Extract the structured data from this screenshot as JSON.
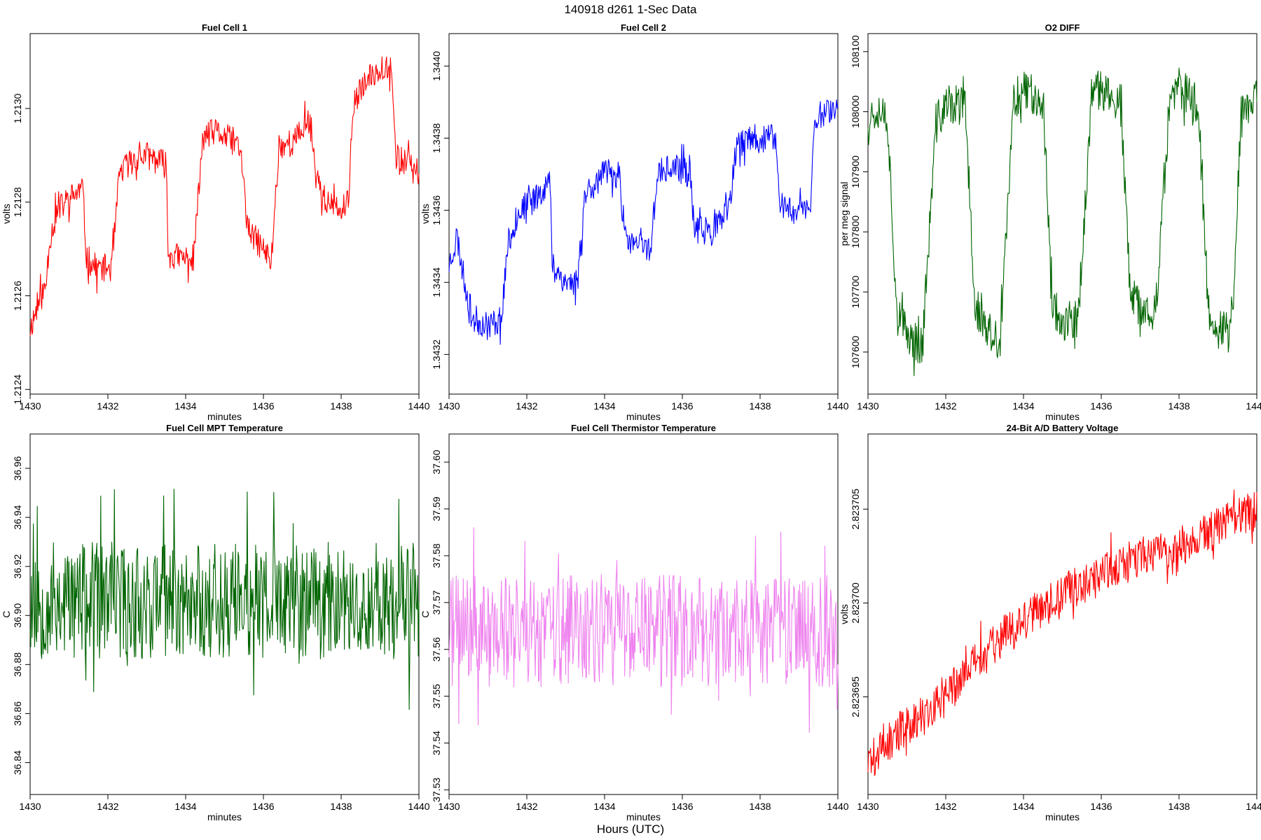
{
  "figure": {
    "title": "140918   d261   1-Sec Data",
    "outer_xlabel": "Hours (UTC)"
  },
  "colors": {
    "red": "#ff0000",
    "blue": "#0000ff",
    "green": "#006400",
    "violet": "#ee82ee"
  },
  "chart_data": [
    {
      "type": "line",
      "title": "Fuel Cell 1",
      "xlabel": "minutes",
      "ylabel": "volts",
      "color": "#ff0000",
      "xlim": [
        1430,
        1440
      ],
      "ylim": [
        1.21239,
        1.21316
      ],
      "xticks": [
        1430,
        1432,
        1434,
        1436,
        1438,
        1440
      ],
      "xtick_labels": [
        "1430",
        "1432",
        "1434",
        "1436",
        "1438",
        "1440"
      ],
      "yticks": [
        1.2124,
        1.2126,
        1.2128,
        1.213
      ],
      "ytick_labels": [
        "1.2124",
        "1.2126",
        "1.2128",
        "1.2130"
      ],
      "noise": 6e-05,
      "seed": 11,
      "trend": [
        [
          1430.0,
          1.21253
        ],
        [
          1430.2,
          1.21258
        ],
        [
          1430.4,
          1.21262
        ],
        [
          1430.5,
          1.21272
        ],
        [
          1430.7,
          1.21278
        ],
        [
          1430.9,
          1.2128
        ],
        [
          1431.2,
          1.21282
        ],
        [
          1431.35,
          1.21283
        ],
        [
          1431.45,
          1.21268
        ],
        [
          1431.7,
          1.21266
        ],
        [
          1432.1,
          1.21266
        ],
        [
          1432.3,
          1.21286
        ],
        [
          1432.6,
          1.21289
        ],
        [
          1433.0,
          1.2129
        ],
        [
          1433.5,
          1.21288
        ],
        [
          1433.55,
          1.21269
        ],
        [
          1433.9,
          1.21268
        ],
        [
          1434.2,
          1.21268
        ],
        [
          1434.45,
          1.21294
        ],
        [
          1434.8,
          1.21295
        ],
        [
          1435.4,
          1.21292
        ],
        [
          1435.6,
          1.21274
        ],
        [
          1436.0,
          1.2127
        ],
        [
          1436.2,
          1.21267
        ],
        [
          1436.4,
          1.21292
        ],
        [
          1436.8,
          1.21293
        ],
        [
          1437.2,
          1.21298
        ],
        [
          1437.35,
          1.21286
        ],
        [
          1437.6,
          1.2128
        ],
        [
          1438.0,
          1.21278
        ],
        [
          1438.2,
          1.2128
        ],
        [
          1438.3,
          1.21301
        ],
        [
          1438.6,
          1.21305
        ],
        [
          1439.0,
          1.21309
        ],
        [
          1439.3,
          1.21309
        ],
        [
          1439.4,
          1.2129
        ],
        [
          1439.7,
          1.21288
        ],
        [
          1440.0,
          1.21286
        ]
      ]
    },
    {
      "type": "line",
      "title": "Fuel Cell 2",
      "xlabel": "minutes",
      "ylabel": "volts",
      "color": "#0000ff",
      "xlim": [
        1430,
        1440
      ],
      "ylim": [
        1.34309,
        1.34409
      ],
      "xticks": [
        1430,
        1432,
        1434,
        1436,
        1438,
        1440
      ],
      "xtick_labels": [
        "1430",
        "1432",
        "1434",
        "1436",
        "1438",
        "1440"
      ],
      "yticks": [
        1.3432,
        1.3434,
        1.3436,
        1.3438,
        1.344
      ],
      "ytick_labels": [
        "1.3432",
        "1.3434",
        "1.3436",
        "1.3438",
        "1.3440"
      ],
      "noise": 8e-05,
      "seed": 23,
      "trend": [
        [
          1430.0,
          1.34345
        ],
        [
          1430.2,
          1.34353
        ],
        [
          1430.4,
          1.3434
        ],
        [
          1430.6,
          1.3433
        ],
        [
          1431.0,
          1.34328
        ],
        [
          1431.35,
          1.3433
        ],
        [
          1431.5,
          1.3435
        ],
        [
          1431.8,
          1.3436
        ],
        [
          1432.1,
          1.34362
        ],
        [
          1432.4,
          1.34366
        ],
        [
          1432.6,
          1.34368
        ],
        [
          1432.65,
          1.34345
        ],
        [
          1433.0,
          1.3434
        ],
        [
          1433.3,
          1.3434
        ],
        [
          1433.5,
          1.34365
        ],
        [
          1434.0,
          1.3437
        ],
        [
          1434.4,
          1.3437
        ],
        [
          1434.5,
          1.34352
        ],
        [
          1434.9,
          1.3435
        ],
        [
          1435.2,
          1.3435
        ],
        [
          1435.35,
          1.3437
        ],
        [
          1435.8,
          1.34372
        ],
        [
          1436.2,
          1.3437
        ],
        [
          1436.3,
          1.34355
        ],
        [
          1436.8,
          1.34354
        ],
        [
          1437.2,
          1.3436
        ],
        [
          1437.4,
          1.34378
        ],
        [
          1437.9,
          1.3438
        ],
        [
          1438.4,
          1.3438
        ],
        [
          1438.5,
          1.34362
        ],
        [
          1438.9,
          1.3436
        ],
        [
          1439.3,
          1.34361
        ],
        [
          1439.4,
          1.34385
        ],
        [
          1439.7,
          1.34388
        ],
        [
          1440.0,
          1.34388
        ]
      ]
    },
    {
      "type": "line",
      "title": "O2 DIFF",
      "xlabel": "minutes",
      "ylabel": "per meg signal",
      "color": "#006400",
      "xlim": [
        1430,
        1440
      ],
      "ylim": [
        107530,
        108130
      ],
      "xticks": [
        1430,
        1432,
        1434,
        1436,
        1438,
        1440
      ],
      "xtick_labels": [
        "1430",
        "1432",
        "1434",
        "1436",
        "1438",
        "1440"
      ],
      "yticks": [
        107600,
        107700,
        107800,
        107900,
        108000,
        108100
      ],
      "ytick_labels": [
        "107600",
        "107700",
        "107800",
        "107900",
        "108000",
        "108100"
      ],
      "noise": 70,
      "seed": 37,
      "trend": [
        [
          1430.0,
          107990
        ],
        [
          1430.3,
          108010
        ],
        [
          1430.5,
          107990
        ],
        [
          1430.75,
          107660
        ],
        [
          1431.0,
          107630
        ],
        [
          1431.4,
          107610
        ],
        [
          1431.75,
          107980
        ],
        [
          1432.0,
          108010
        ],
        [
          1432.5,
          108010
        ],
        [
          1432.75,
          107680
        ],
        [
          1433.0,
          107640
        ],
        [
          1433.4,
          107610
        ],
        [
          1433.75,
          108020
        ],
        [
          1434.0,
          108040
        ],
        [
          1434.5,
          108020
        ],
        [
          1434.75,
          107680
        ],
        [
          1435.0,
          107650
        ],
        [
          1435.4,
          107650
        ],
        [
          1435.75,
          108020
        ],
        [
          1436.0,
          108040
        ],
        [
          1436.5,
          108010
        ],
        [
          1436.75,
          107690
        ],
        [
          1437.0,
          107670
        ],
        [
          1437.4,
          107670
        ],
        [
          1437.75,
          108010
        ],
        [
          1438.0,
          108040
        ],
        [
          1438.5,
          108010
        ],
        [
          1438.75,
          107670
        ],
        [
          1439.0,
          107640
        ],
        [
          1439.35,
          107630
        ],
        [
          1439.6,
          107990
        ],
        [
          1440.0,
          108030
        ]
      ]
    },
    {
      "type": "line",
      "title": "Fuel Cell MPT Temperature",
      "xlabel": "minutes",
      "ylabel": "C",
      "color": "#006400",
      "xlim": [
        1430,
        1440
      ],
      "ylim": [
        36.827,
        36.974
      ],
      "xticks": [
        1430,
        1432,
        1434,
        1436,
        1438,
        1440
      ],
      "xtick_labels": [
        "1430",
        "1432",
        "1434",
        "1436",
        "1438",
        "1440"
      ],
      "yticks": [
        36.84,
        36.86,
        36.88,
        36.9,
        36.92,
        36.94,
        36.96
      ],
      "ytick_labels": [
        "36.84",
        "36.86",
        "36.88",
        "36.90",
        "36.92",
        "36.94",
        "36.96"
      ],
      "noise": 0.048,
      "seed": 53,
      "trend": [
        [
          1430.0,
          36.906
        ],
        [
          1440.0,
          36.906
        ]
      ]
    },
    {
      "type": "line",
      "title": "Fuel Cell Thermistor Temperature",
      "xlabel": "minutes",
      "ylabel": "C",
      "color": "#ee82ee",
      "xlim": [
        1430,
        1440
      ],
      "ylim": [
        37.529,
        37.606
      ],
      "xticks": [
        1430,
        1432,
        1434,
        1436,
        1438,
        1440
      ],
      "xtick_labels": [
        "1430",
        "1432",
        "1434",
        "1436",
        "1438",
        "1440"
      ],
      "yticks": [
        37.53,
        37.54,
        37.55,
        37.56,
        37.57,
        37.58,
        37.59,
        37.6
      ],
      "ytick_labels": [
        "37.53",
        "37.54",
        "37.55",
        "37.56",
        "37.57",
        "37.58",
        "37.59",
        "37.60"
      ],
      "noise": 0.024,
      "seed": 71,
      "trend": [
        [
          1430.0,
          37.564
        ],
        [
          1440.0,
          37.564
        ]
      ]
    },
    {
      "type": "line",
      "title": "24-Bit A/D Battery Voltage",
      "xlabel": "minutes",
      "ylabel": "volts",
      "color": "#ff0000",
      "xlim": [
        1430,
        1440
      ],
      "ylim": [
        2.8236898,
        2.823709
      ],
      "xticks": [
        1430,
        1432,
        1434,
        1436,
        1438,
        1440
      ],
      "xtick_labels": [
        "1430",
        "1432",
        "1434",
        "1436",
        "1438",
        "1440"
      ],
      "yticks": [
        2.823695,
        2.8237,
        2.823705
      ],
      "ytick_labels": [
        "2.823695",
        "2.823700",
        "2.823705"
      ],
      "noise": 2.2e-06,
      "seed": 89,
      "trend": [
        [
          1430.0,
          2.8236915
        ],
        [
          1431.0,
          2.8236935
        ],
        [
          1432.0,
          2.823695
        ],
        [
          1433.0,
          2.8236975
        ],
        [
          1434.0,
          2.823699
        ],
        [
          1435.0,
          2.8237005
        ],
        [
          1436.0,
          2.8237015
        ],
        [
          1437.0,
          2.8237025
        ],
        [
          1438.0,
          2.823703
        ],
        [
          1439.0,
          2.823704
        ],
        [
          1440.0,
          2.823705
        ]
      ]
    }
  ]
}
